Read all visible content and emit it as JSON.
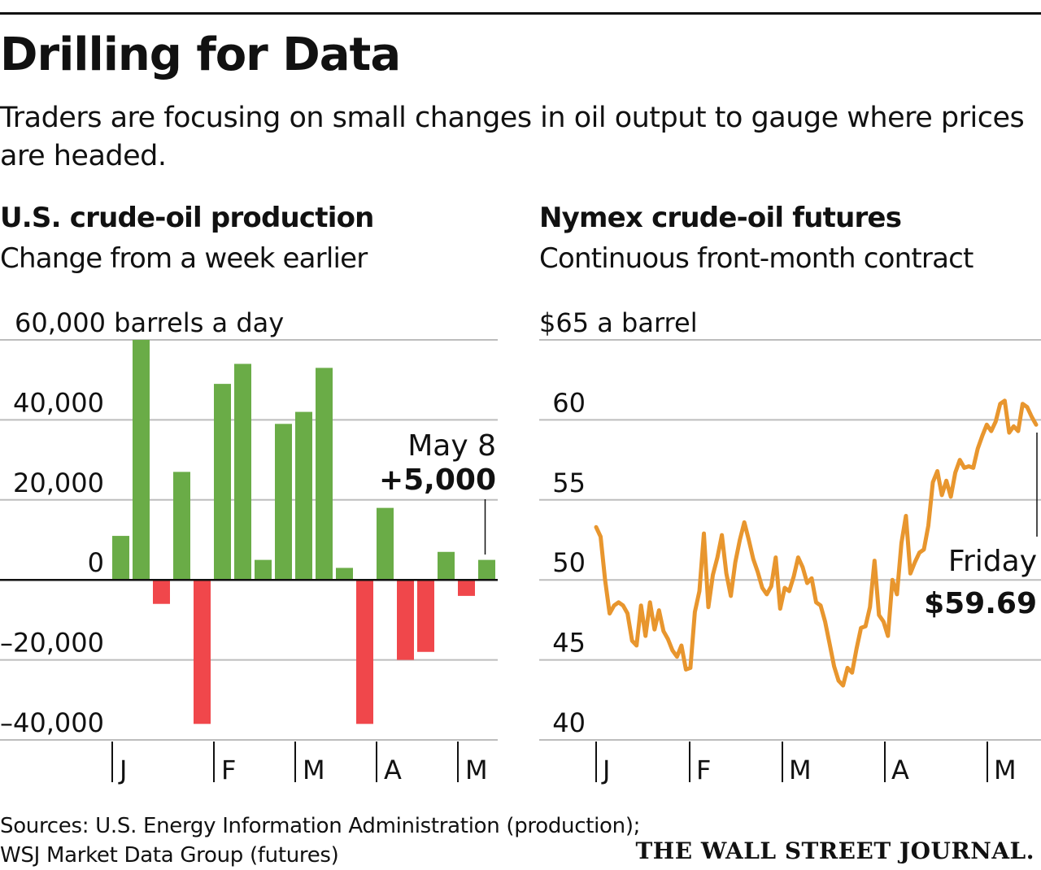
{
  "title": "Drilling for Data",
  "subtitle": "Traders are focusing on small changes in oil output to gauge where prices are headed.",
  "source_line1": "Sources: U.S. Energy Information Administration (production);",
  "source_line2": "WSJ Market Data Group (futures)",
  "publisher": "THE WALL STREET JOURNAL.",
  "colors": {
    "positive": "#6aac47",
    "negative": "#f0474b",
    "line": "#e8962e",
    "grid": "#bdbdbd"
  },
  "chart_data": [
    {
      "type": "bar",
      "title": "U.S. crude-oil production",
      "subtitle": "Change from a week earlier",
      "ylabel": "barrels a day",
      "unit": "barrels a day",
      "ylim": [
        -40000,
        60000
      ],
      "yticks": [
        60000,
        40000,
        20000,
        0,
        -20000,
        -40000
      ],
      "ytick_labels": [
        "60,000 barrels a day",
        "40,000",
        "20,000",
        "0",
        "–20,000",
        "–40,000"
      ],
      "month_ticks": [
        "J",
        "F",
        "M",
        "A",
        "M"
      ],
      "values": [
        11000,
        60000,
        -6000,
        27000,
        -36000,
        49000,
        54000,
        5000,
        39000,
        42000,
        53000,
        3000,
        -36000,
        18000,
        -20000,
        -18000,
        7000,
        -4000,
        5000
      ],
      "annotation": {
        "label": "May 8",
        "value_label": "+5,000"
      },
      "grid": true
    },
    {
      "type": "line",
      "title": "Nymex crude-oil futures",
      "subtitle": "Continuous front-month contract",
      "ylabel": "$ a barrel",
      "ylim": [
        40,
        65
      ],
      "yticks": [
        65,
        60,
        55,
        50,
        45,
        40
      ],
      "ytick_labels": [
        "$65 a barrel",
        "60",
        "55",
        "50",
        "45",
        "40"
      ],
      "month_ticks": [
        "J",
        "F",
        "M",
        "A",
        "M"
      ],
      "series": [
        {
          "values": [
            53.3,
            52.7,
            50.0,
            47.9,
            48.4,
            48.6,
            48.4,
            47.9,
            46.2,
            45.9,
            48.4,
            46.5,
            48.6,
            46.9,
            48.1,
            46.8,
            46.3,
            45.6,
            45.2,
            45.9,
            44.4,
            44.5,
            48.0,
            49.3,
            52.9,
            48.3,
            50.3,
            51.4,
            52.8,
            50.4,
            49.0,
            51.1,
            52.5,
            53.6,
            52.5,
            51.3,
            50.5,
            49.5,
            49.1,
            49.6,
            51.4,
            48.2,
            49.5,
            49.3,
            50.2,
            51.4,
            50.8,
            49.8,
            50.1,
            48.6,
            48.4,
            47.4,
            46.0,
            44.6,
            43.7,
            43.4,
            44.5,
            44.2,
            45.7,
            47.0,
            47.1,
            48.3,
            51.2,
            47.8,
            47.4,
            46.5,
            50.0,
            49.1,
            52.3,
            54.0,
            50.4,
            51.1,
            51.7,
            51.9,
            53.4,
            56.1,
            56.8,
            55.3,
            56.2,
            55.2,
            56.7,
            57.5,
            57.0,
            57.1,
            57.0,
            58.2,
            59.0,
            59.7,
            59.3,
            59.9,
            61.0,
            61.2,
            59.2,
            59.6,
            59.3,
            61.0,
            60.8,
            60.2,
            59.7
          ]
        }
      ],
      "annotation": {
        "label": "Friday",
        "value_label": "$59.69"
      },
      "grid": true
    }
  ]
}
